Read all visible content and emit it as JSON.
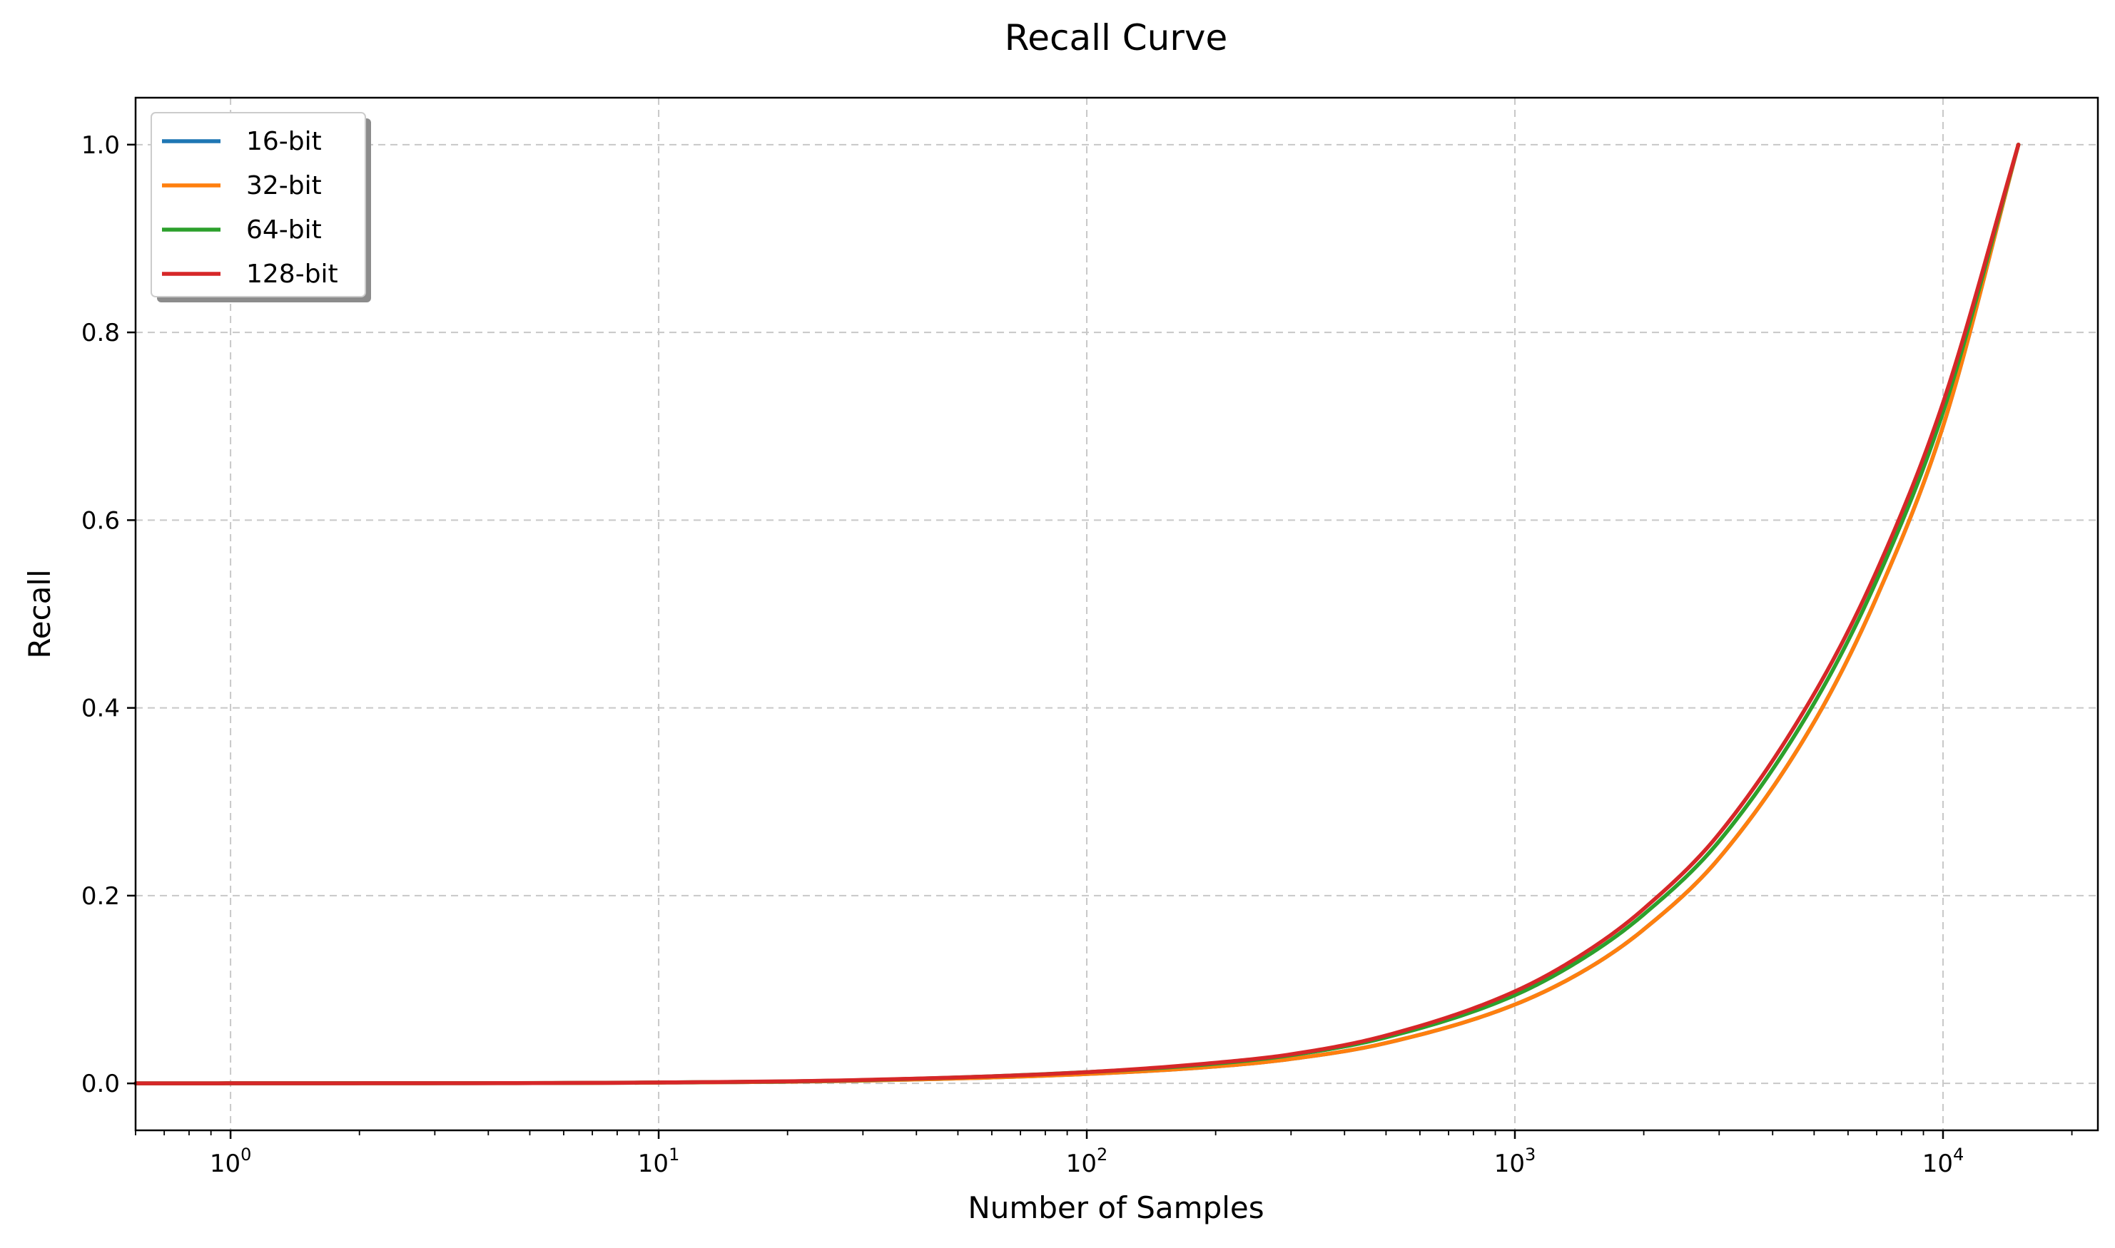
{
  "chart_data": {
    "type": "line",
    "title": "Recall Curve",
    "xlabel": "Number of Samples",
    "ylabel": "Recall",
    "xscale": "log",
    "xlim": [
      0.6,
      23000
    ],
    "ylim": [
      -0.05,
      1.05
    ],
    "grid": true,
    "legend_position": "upper-left",
    "x_ticks": [
      {
        "value": 1,
        "base": "10",
        "exp": "0"
      },
      {
        "value": 10,
        "base": "10",
        "exp": "1"
      },
      {
        "value": 100,
        "base": "10",
        "exp": "2"
      },
      {
        "value": 1000,
        "base": "10",
        "exp": "3"
      },
      {
        "value": 10000,
        "base": "10",
        "exp": "4"
      }
    ],
    "y_ticks": [
      {
        "value": 0.0,
        "label": "0.0"
      },
      {
        "value": 0.2,
        "label": "0.2"
      },
      {
        "value": 0.4,
        "label": "0.4"
      },
      {
        "value": 0.6,
        "label": "0.6"
      },
      {
        "value": 0.8,
        "label": "0.8"
      },
      {
        "value": 1.0,
        "label": "1.0"
      }
    ],
    "series": [
      {
        "name": "16-bit",
        "color": "#1f77b4",
        "points": [
          [
            0.6,
            0.0
          ],
          [
            1,
            0.0001
          ],
          [
            10,
            0.0008
          ],
          [
            30,
            0.003
          ],
          [
            100,
            0.01
          ],
          [
            200,
            0.018
          ],
          [
            300,
            0.026
          ],
          [
            500,
            0.043
          ],
          [
            1000,
            0.084
          ],
          [
            1500,
            0.124
          ],
          [
            2000,
            0.164
          ],
          [
            3000,
            0.24
          ],
          [
            5000,
            0.385
          ],
          [
            7000,
            0.518
          ],
          [
            10000,
            0.7
          ],
          [
            15000,
            1.0
          ]
        ]
      },
      {
        "name": "32-bit",
        "color": "#ff7f0e",
        "points": [
          [
            0.6,
            0.0
          ],
          [
            1,
            0.0001
          ],
          [
            10,
            0.0008
          ],
          [
            30,
            0.003
          ],
          [
            100,
            0.01
          ],
          [
            200,
            0.018
          ],
          [
            300,
            0.026
          ],
          [
            500,
            0.043
          ],
          [
            1000,
            0.084
          ],
          [
            1500,
            0.124
          ],
          [
            2000,
            0.164
          ],
          [
            3000,
            0.24
          ],
          [
            5000,
            0.385
          ],
          [
            7000,
            0.518
          ],
          [
            10000,
            0.7
          ],
          [
            15000,
            1.0
          ]
        ]
      },
      {
        "name": "64-bit",
        "color": "#2ca02c",
        "points": [
          [
            0.6,
            0.0
          ],
          [
            1,
            0.0001
          ],
          [
            10,
            0.001
          ],
          [
            30,
            0.0035
          ],
          [
            100,
            0.012
          ],
          [
            200,
            0.021
          ],
          [
            300,
            0.03
          ],
          [
            500,
            0.049
          ],
          [
            1000,
            0.094
          ],
          [
            1500,
            0.138
          ],
          [
            2000,
            0.18
          ],
          [
            3000,
            0.258
          ],
          [
            5000,
            0.405
          ],
          [
            7000,
            0.536
          ],
          [
            10000,
            0.715
          ],
          [
            15000,
            1.0
          ]
        ]
      },
      {
        "name": "128-bit",
        "color": "#d62728",
        "points": [
          [
            0.6,
            0.0
          ],
          [
            1,
            0.0001
          ],
          [
            10,
            0.001
          ],
          [
            30,
            0.0037
          ],
          [
            100,
            0.012
          ],
          [
            200,
            0.022
          ],
          [
            300,
            0.031
          ],
          [
            500,
            0.051
          ],
          [
            1000,
            0.098
          ],
          [
            1500,
            0.143
          ],
          [
            2000,
            0.186
          ],
          [
            3000,
            0.266
          ],
          [
            5000,
            0.415
          ],
          [
            7000,
            0.546
          ],
          [
            10000,
            0.725
          ],
          [
            15000,
            1.0
          ]
        ]
      }
    ]
  }
}
